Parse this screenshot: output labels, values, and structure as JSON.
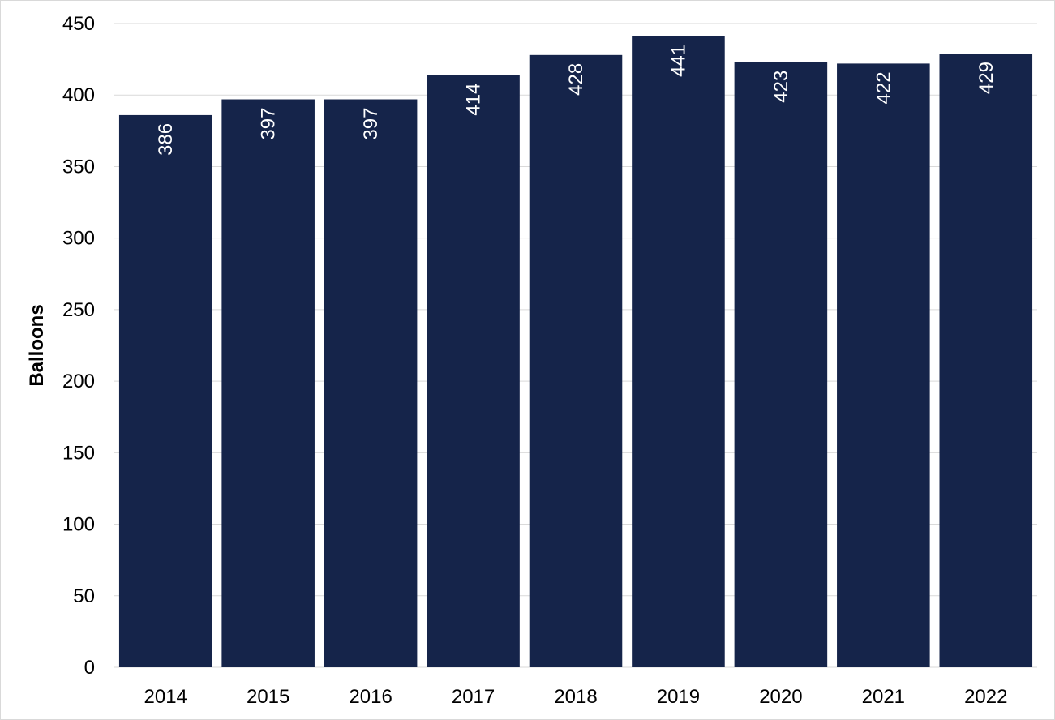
{
  "chart_data": {
    "type": "bar",
    "title": "",
    "xlabel": "",
    "ylabel": "Balloons",
    "categories": [
      "2014",
      "2015",
      "2016",
      "2017",
      "2018",
      "2019",
      "2020",
      "2021",
      "2022"
    ],
    "values": [
      386,
      397,
      397,
      414,
      428,
      441,
      423,
      422,
      429
    ],
    "data_labels": [
      "386",
      "397",
      "397",
      "414",
      "428",
      "441",
      "423",
      "422",
      "429"
    ],
    "ylim": [
      0,
      450
    ],
    "yticks": [
      "0",
      "50",
      "100",
      "150",
      "200",
      "250",
      "300",
      "350",
      "400",
      "450"
    ],
    "grid": true,
    "legend": "none",
    "bar_color": "#15244a",
    "label_color": "#ffffff"
  }
}
